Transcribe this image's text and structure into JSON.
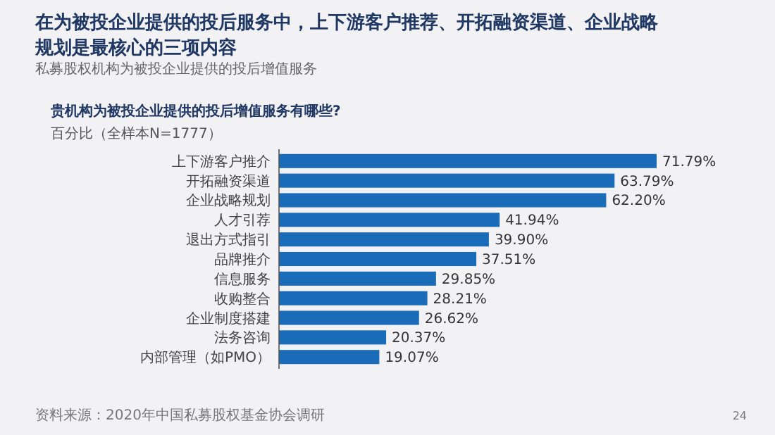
{
  "chart_data": {
    "type": "bar",
    "orientation": "horizontal",
    "title": "在为被投企业提供的投后服务中，上下游客户推荐、开拓融资渠道、企业战略规划是最核心的三项内容",
    "subtitle": "私募股权机构为被投企业提供的投后增值服务",
    "annotations": [
      "贵机构为被投企业提供的投后增值服务有哪些?",
      "百分比（全样本N=1777）",
      "资料来源：2020年中国私募股权基金协会调研",
      "24"
    ],
    "categories": [
      "上下游客户推介",
      "开拓融资渠道",
      "企业战略规划",
      "人才引荐",
      "退出方式指引",
      "品牌推介",
      "信息服务",
      "收购整合",
      "企业制度搭建",
      "法务咨询",
      "内部管理（如PMO）"
    ],
    "values": [
      71.79,
      63.79,
      62.2,
      41.94,
      39.9,
      37.51,
      29.85,
      28.21,
      26.62,
      20.37,
      19.07
    ],
    "value_labels": [
      "71.79%",
      "63.79%",
      "62.20%",
      "41.94%",
      "39.90%",
      "37.51%",
      "29.85%",
      "28.21%",
      "26.62%",
      "20.37%",
      "19.07%"
    ],
    "color": "#1a6bb8"
  }
}
